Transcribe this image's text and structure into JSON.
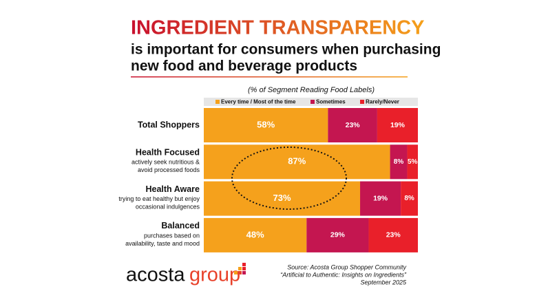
{
  "chart_data": {
    "type": "stacked-barh",
    "title": "INGREDIENT TRANSPARENCY",
    "subtitle": [
      "is important for consumers when purchasing",
      "new food and beverage products"
    ],
    "chart_subtitle": "(% of Segment Reading Food Labels)",
    "categories": [
      "Total Shoppers",
      "Health Focused",
      "Health Aware",
      "Balanced"
    ],
    "category_notes": [
      [],
      [
        "actively seek nutritious &",
        "avoid processed foods"
      ],
      [
        "trying to eat healthy but enjoy",
        "occasional indulgences"
      ],
      [
        "purchases based on",
        "availability, taste and mood"
      ]
    ],
    "xlim": [
      0,
      100
    ],
    "series": [
      {
        "name": "Every time / Most of the time",
        "color": "#f5a11c",
        "values": [
          58,
          87,
          73,
          48
        ],
        "value_labels": [
          "58%",
          "87%",
          "73%",
          "48%"
        ]
      },
      {
        "name": "Sometimes",
        "color": "#c41650",
        "values": [
          23,
          8,
          19,
          29
        ],
        "value_labels": [
          "23%",
          "8%",
          "19%",
          "29%"
        ]
      },
      {
        "name": "Rarely/Never",
        "color": "#e9202a",
        "values": [
          19,
          5,
          8,
          23
        ],
        "value_labels": [
          "19%",
          "5%",
          "8%",
          "23%"
        ]
      }
    ],
    "logo": {
      "brand": "acosta",
      "group": "group"
    },
    "source": [
      "Source: Acosta Group Shopper Community",
      "“Artificial to Authentic: Insights on Ingredients”",
      "September 2025"
    ]
  }
}
